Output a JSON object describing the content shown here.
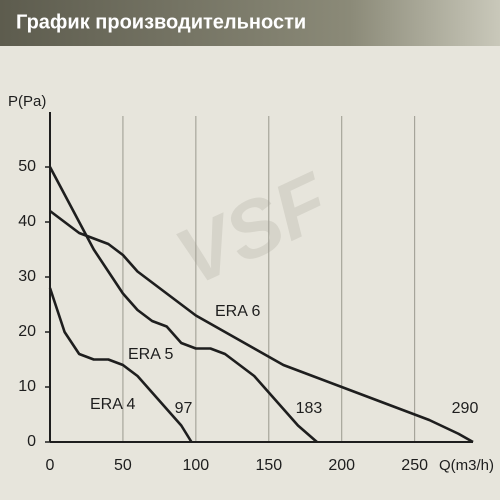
{
  "chart_data": {
    "type": "line",
    "title": "График производительности",
    "watermark": "VSF",
    "y_label": "P(Pa)",
    "x_label": "Q(m3/h)",
    "xlim": [
      0,
      290
    ],
    "ylim": [
      0,
      60
    ],
    "xticks": [
      0,
      50,
      100,
      150,
      200,
      250
    ],
    "yticks": [
      0,
      10,
      20,
      30,
      40,
      50
    ],
    "grid": true,
    "series": [
      {
        "name": "ERA 4",
        "end_label": "97",
        "color": "#1e1e1e",
        "x": [
          0,
          10,
          20,
          30,
          40,
          50,
          60,
          70,
          80,
          90,
          97
        ],
        "values": [
          28,
          20,
          16,
          15,
          15,
          14,
          12,
          9,
          6,
          3,
          0
        ]
      },
      {
        "name": "ERA 5",
        "end_label": "183",
        "color": "#1e1e1e",
        "x": [
          0,
          10,
          20,
          30,
          40,
          50,
          60,
          70,
          80,
          90,
          100,
          110,
          120,
          130,
          140,
          150,
          160,
          170,
          183
        ],
        "values": [
          50,
          45,
          40,
          35,
          31,
          27,
          24,
          22,
          21,
          18,
          17,
          17,
          16,
          14,
          12,
          9,
          6,
          3,
          0
        ]
      },
      {
        "name": "ERA 6",
        "end_label": "290",
        "color": "#1e1e1e",
        "x": [
          0,
          10,
          20,
          30,
          40,
          50,
          60,
          70,
          80,
          90,
          100,
          120,
          140,
          160,
          180,
          200,
          220,
          240,
          260,
          280,
          290
        ],
        "values": [
          42,
          40,
          38,
          37,
          36,
          34,
          31,
          29,
          27,
          25,
          23,
          20,
          17,
          14,
          12,
          10,
          8,
          6,
          4,
          1.5,
          0
        ]
      }
    ]
  }
}
